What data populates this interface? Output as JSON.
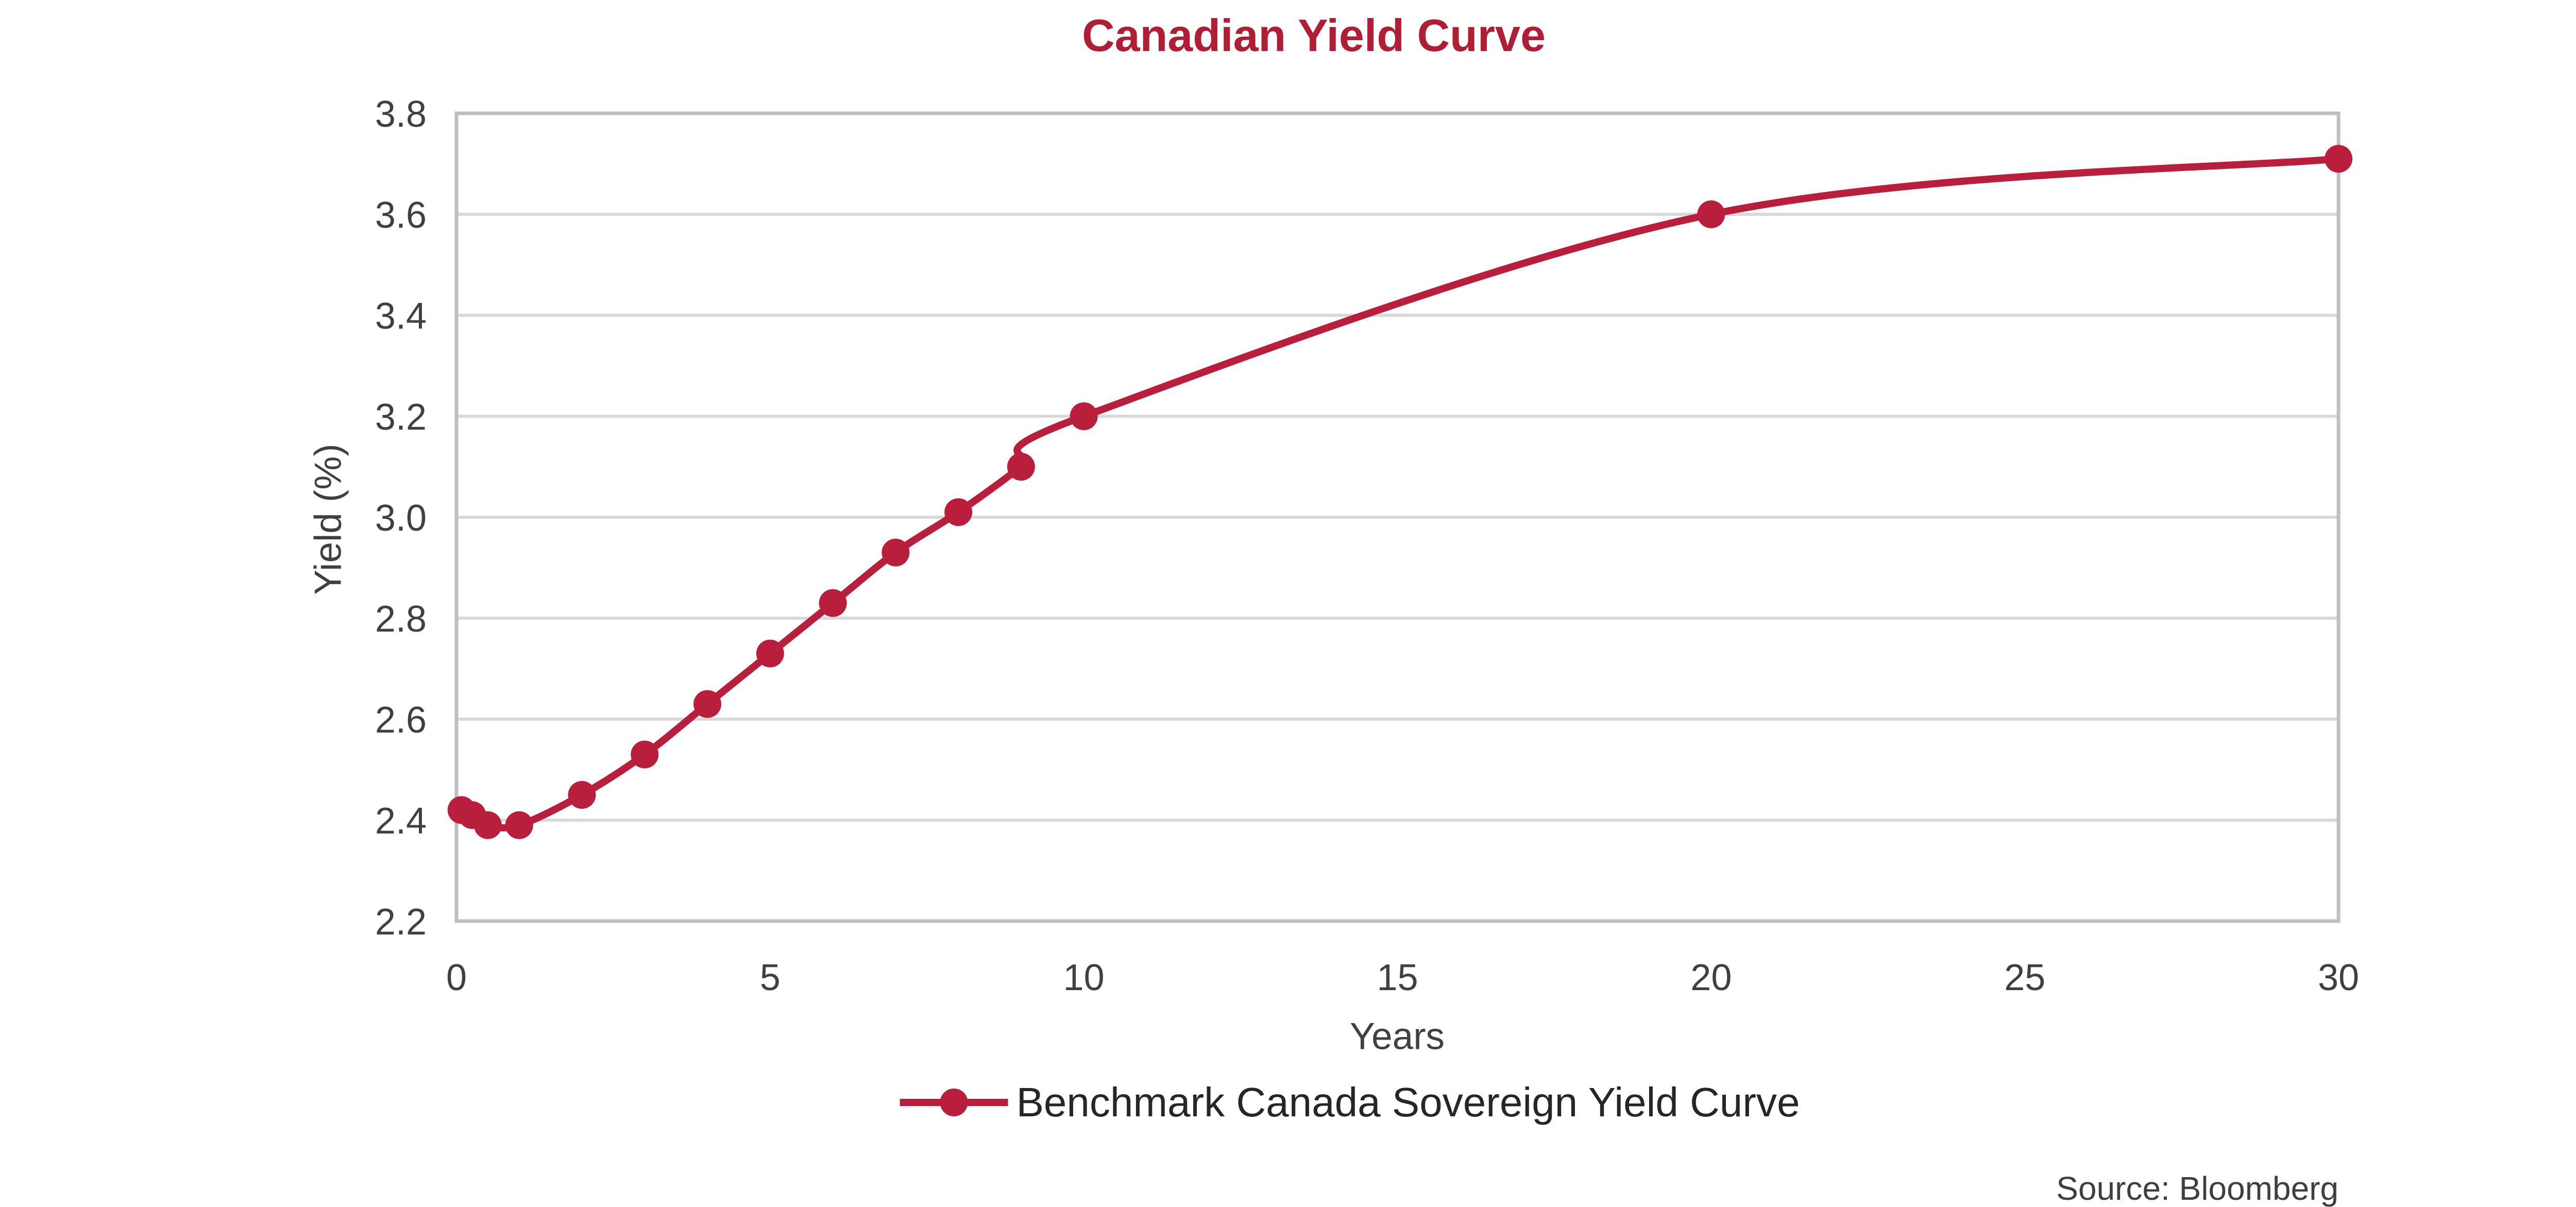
{
  "chart_data": {
    "type": "line",
    "title": "Canadian Yield Curve",
    "xlabel": "Years",
    "ylabel": "Yield (%)",
    "source_note": "Source: Bloomberg",
    "xlim": [
      0,
      30
    ],
    "ylim": [
      2.2,
      3.8
    ],
    "x_ticks": [
      0,
      5,
      10,
      15,
      20,
      25,
      30
    ],
    "y_ticks": [
      2.2,
      2.4,
      2.6,
      2.8,
      3.0,
      3.2,
      3.4,
      3.6,
      3.8
    ],
    "grid": "horizontal-only",
    "legend_position": "bottom-center",
    "series": [
      {
        "name": "Benchmark Canada Sovereign Yield Curve",
        "color": "#B91E3C",
        "marker": "circle",
        "line_style": "smooth",
        "x": [
          0.08,
          0.25,
          0.5,
          1,
          2,
          3,
          4,
          5,
          6,
          7,
          8,
          9,
          10,
          20,
          30
        ],
        "y": [
          2.42,
          2.41,
          2.39,
          2.39,
          2.45,
          2.53,
          2.63,
          2.73,
          2.83,
          2.93,
          3.01,
          3.1,
          3.2,
          3.6,
          3.71
        ]
      }
    ]
  },
  "colors": {
    "accent_red": "#B91E3C",
    "title_red": "#B01E36",
    "grid_line": "#D9D9D9",
    "plot_border": "#BFBFBF",
    "tick_text": "#404040",
    "legend_text": "#262626",
    "source_text": "#3F3F3F"
  }
}
